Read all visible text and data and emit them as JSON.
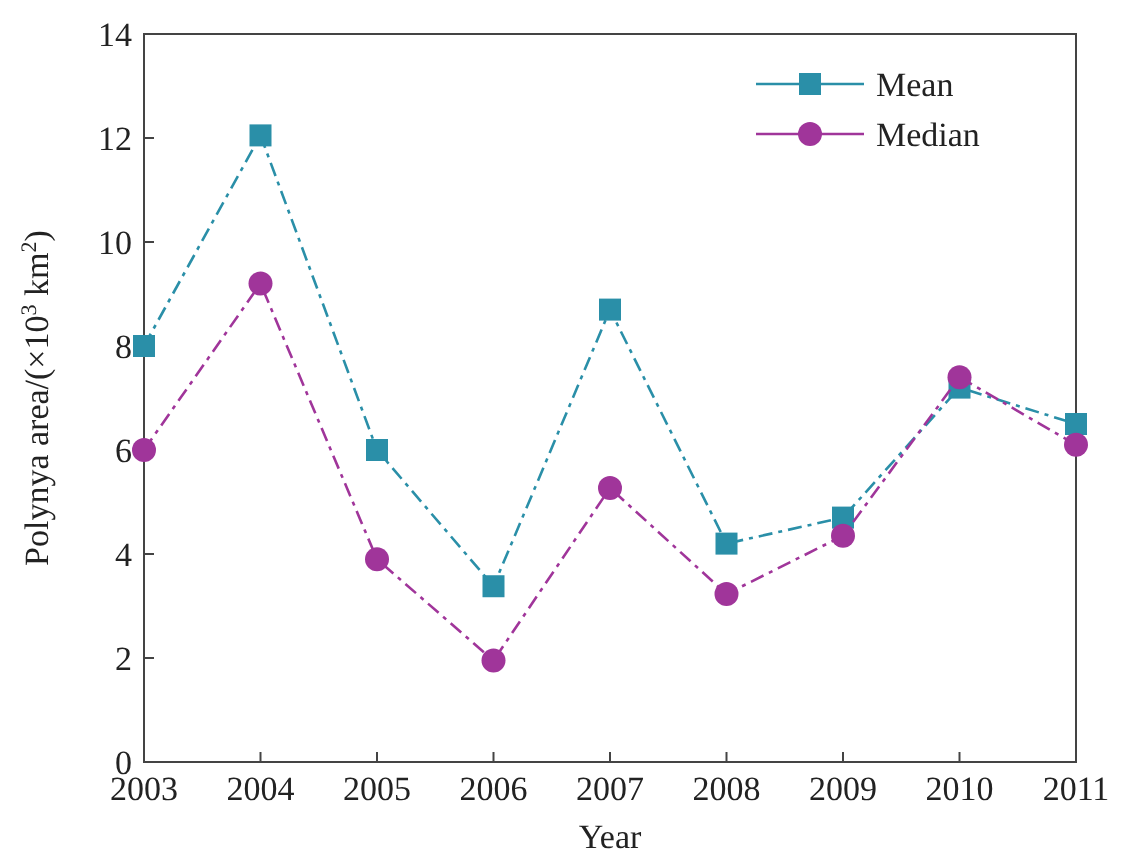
{
  "chart_data": {
    "type": "line",
    "xlabel": "Year",
    "ylabel": "Polynya area/(×10$^{3}$ km$^{2}$)",
    "x": [
      2003,
      2004,
      2005,
      2006,
      2007,
      2008,
      2009,
      2010,
      2011
    ],
    "xlim": [
      2003,
      2011
    ],
    "xticks": [
      2003,
      2004,
      2005,
      2006,
      2007,
      2008,
      2009,
      2010,
      2011
    ],
    "ylim": [
      0,
      14
    ],
    "yticks": [
      0,
      2,
      4,
      6,
      8,
      10,
      12,
      14
    ],
    "grid": false,
    "legend": "top right",
    "line_style": "dashed",
    "series": [
      {
        "name": "Mean",
        "color": "#2a8fa8",
        "marker": "square",
        "values": [
          8.0,
          12.05,
          6.0,
          3.38,
          8.7,
          4.2,
          4.7,
          7.2,
          6.5
        ]
      },
      {
        "name": "Median",
        "color": "#a0359a",
        "marker": "circle",
        "values": [
          6.0,
          9.2,
          3.9,
          1.95,
          5.27,
          3.23,
          4.35,
          7.4,
          6.1
        ]
      }
    ]
  }
}
